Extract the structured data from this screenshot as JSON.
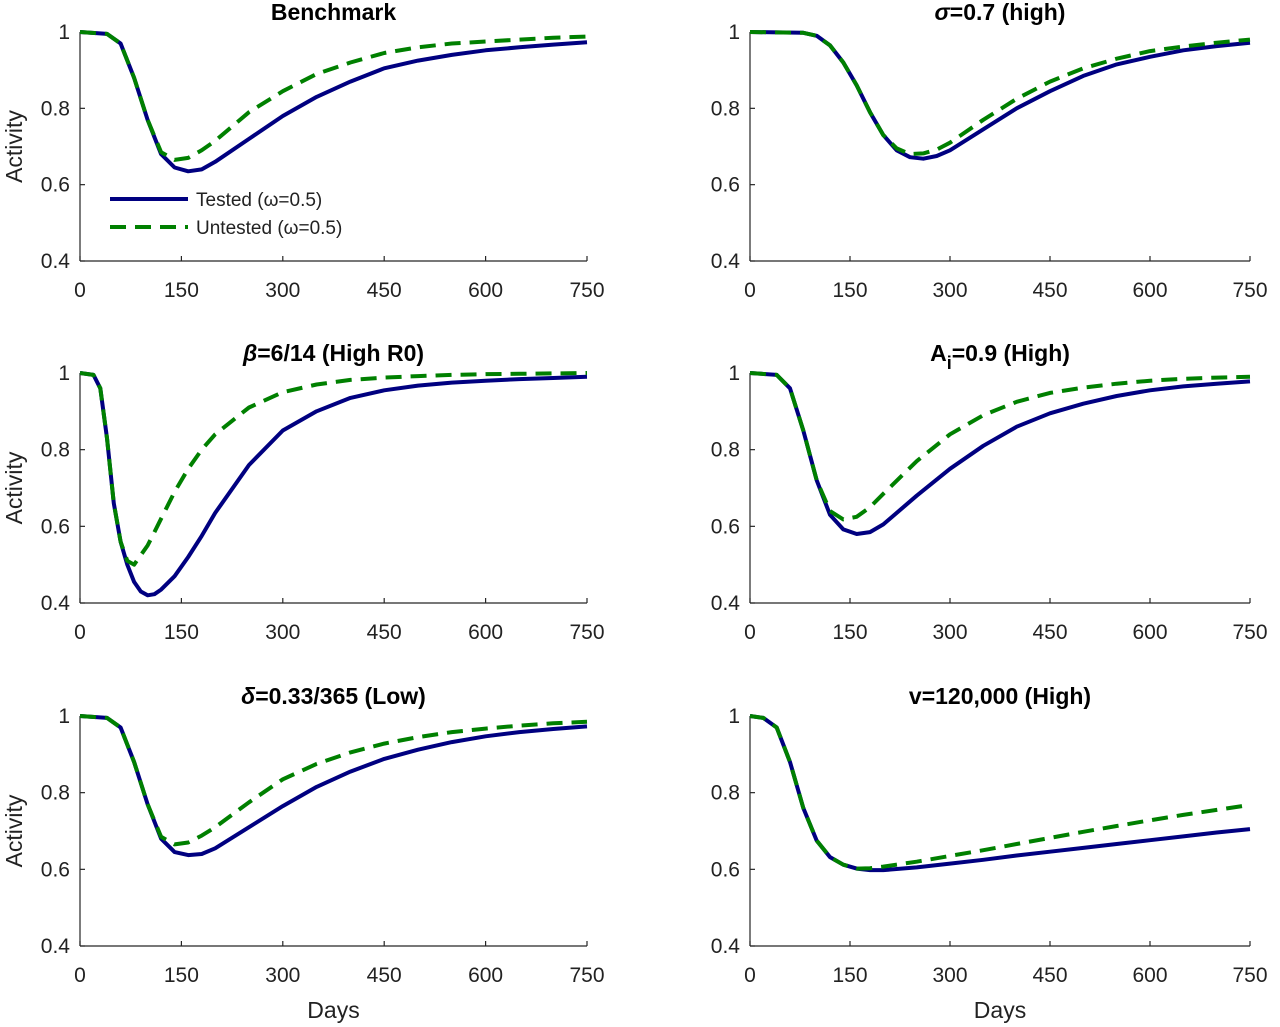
{
  "colors": {
    "tested": "#000080",
    "untested": "#008000",
    "axis": "#262626"
  },
  "chart_data": [
    {
      "type": "line",
      "title_parts": [
        {
          "t": "Benchmark"
        }
      ],
      "xlabel": "",
      "ylabel": "Activity",
      "xlim": [
        0,
        750
      ],
      "ylim": [
        0.4,
        1.0
      ],
      "xticks": [
        0,
        150,
        300,
        450,
        600,
        750
      ],
      "yticks": [
        0.4,
        0.6,
        0.8,
        1
      ],
      "ytick_labels": [
        "0.4",
        "0.6",
        "0.8",
        "1"
      ],
      "legend": {
        "position": "bottom-left",
        "entries": [
          "Tested (ω=0.5)",
          "Untested (ω=0.5)"
        ]
      },
      "series": [
        {
          "key": "tested",
          "x": [
            0,
            40,
            60,
            80,
            100,
            120,
            140,
            160,
            180,
            200,
            250,
            300,
            350,
            400,
            450,
            500,
            550,
            600,
            650,
            700,
            750
          ],
          "y": [
            1.0,
            0.995,
            0.97,
            0.88,
            0.77,
            0.68,
            0.645,
            0.635,
            0.64,
            0.66,
            0.72,
            0.78,
            0.83,
            0.87,
            0.905,
            0.925,
            0.94,
            0.952,
            0.96,
            0.967,
            0.973
          ]
        },
        {
          "key": "untested",
          "x": [
            0,
            40,
            60,
            80,
            100,
            120,
            140,
            160,
            180,
            200,
            250,
            300,
            350,
            400,
            450,
            500,
            550,
            600,
            650,
            700,
            750
          ],
          "y": [
            1.0,
            0.995,
            0.97,
            0.88,
            0.77,
            0.685,
            0.665,
            0.67,
            0.69,
            0.715,
            0.79,
            0.845,
            0.89,
            0.92,
            0.945,
            0.96,
            0.97,
            0.975,
            0.98,
            0.985,
            0.988
          ]
        }
      ]
    },
    {
      "type": "line",
      "title_parts": [
        {
          "t": "σ",
          "style": "italic"
        },
        {
          "t": "=0.7 (high)"
        }
      ],
      "xlabel": "",
      "ylabel": "",
      "xlim": [
        0,
        750
      ],
      "ylim": [
        0.4,
        1.0
      ],
      "xticks": [
        0,
        150,
        300,
        450,
        600,
        750
      ],
      "yticks": [
        0.4,
        0.6,
        0.8,
        1
      ],
      "ytick_labels": [
        "0.4",
        "0.6",
        "0.8",
        "1"
      ],
      "series": [
        {
          "key": "tested",
          "x": [
            0,
            80,
            100,
            120,
            140,
            160,
            180,
            200,
            220,
            240,
            260,
            280,
            300,
            350,
            400,
            450,
            500,
            550,
            600,
            650,
            700,
            750
          ],
          "y": [
            1.0,
            0.998,
            0.99,
            0.965,
            0.92,
            0.86,
            0.79,
            0.73,
            0.69,
            0.672,
            0.668,
            0.675,
            0.69,
            0.745,
            0.8,
            0.845,
            0.885,
            0.915,
            0.935,
            0.952,
            0.963,
            0.972
          ]
        },
        {
          "key": "untested",
          "x": [
            0,
            80,
            100,
            120,
            140,
            160,
            180,
            200,
            220,
            240,
            260,
            280,
            300,
            350,
            400,
            450,
            500,
            550,
            600,
            650,
            700,
            750
          ],
          "y": [
            1.0,
            0.998,
            0.99,
            0.965,
            0.92,
            0.86,
            0.79,
            0.73,
            0.695,
            0.68,
            0.682,
            0.692,
            0.71,
            0.77,
            0.825,
            0.87,
            0.905,
            0.93,
            0.95,
            0.962,
            0.972,
            0.98
          ]
        }
      ]
    },
    {
      "type": "line",
      "title_parts": [
        {
          "t": "β",
          "style": "italic"
        },
        {
          "t": "=6/14 (High R0)"
        }
      ],
      "xlabel": "",
      "ylabel": "Activity",
      "xlim": [
        0,
        750
      ],
      "ylim": [
        0.4,
        1.0
      ],
      "xticks": [
        0,
        150,
        300,
        450,
        600,
        750
      ],
      "yticks": [
        0.4,
        0.6,
        0.8,
        1
      ],
      "ytick_labels": [
        "0.4",
        "0.6",
        "0.8",
        "1"
      ],
      "series": [
        {
          "key": "tested",
          "x": [
            0,
            20,
            30,
            40,
            50,
            60,
            70,
            80,
            90,
            100,
            110,
            120,
            140,
            160,
            180,
            200,
            250,
            300,
            350,
            400,
            450,
            500,
            550,
            600,
            650,
            700,
            750
          ],
          "y": [
            1.0,
            0.995,
            0.96,
            0.83,
            0.66,
            0.56,
            0.5,
            0.455,
            0.43,
            0.42,
            0.423,
            0.435,
            0.47,
            0.52,
            0.575,
            0.635,
            0.76,
            0.85,
            0.9,
            0.935,
            0.955,
            0.967,
            0.975,
            0.98,
            0.984,
            0.987,
            0.99
          ]
        },
        {
          "key": "untested",
          "x": [
            0,
            20,
            30,
            40,
            50,
            60,
            70,
            80,
            90,
            100,
            110,
            120,
            140,
            160,
            180,
            200,
            250,
            300,
            350,
            400,
            450,
            500,
            550,
            600,
            650,
            700,
            750
          ],
          "y": [
            1.0,
            0.995,
            0.96,
            0.83,
            0.66,
            0.56,
            0.51,
            0.5,
            0.525,
            0.55,
            0.585,
            0.62,
            0.69,
            0.75,
            0.8,
            0.84,
            0.91,
            0.95,
            0.97,
            0.982,
            0.988,
            0.992,
            0.995,
            0.997,
            0.998,
            0.999,
            1.0
          ]
        }
      ]
    },
    {
      "type": "line",
      "title_parts": [
        {
          "t": "A"
        },
        {
          "t": "i",
          "sub": true
        },
        {
          "t": "=0.9 (High)"
        }
      ],
      "xlabel": "",
      "ylabel": "",
      "xlim": [
        0,
        750
      ],
      "ylim": [
        0.4,
        1.0
      ],
      "xticks": [
        0,
        150,
        300,
        450,
        600,
        750
      ],
      "yticks": [
        0.4,
        0.6,
        0.8,
        1
      ],
      "ytick_labels": [
        "0.4",
        "0.6",
        "0.8",
        "1"
      ],
      "series": [
        {
          "key": "tested",
          "x": [
            0,
            40,
            60,
            80,
            100,
            120,
            140,
            160,
            180,
            200,
            250,
            300,
            350,
            400,
            450,
            500,
            550,
            600,
            650,
            700,
            750
          ],
          "y": [
            1.0,
            0.995,
            0.96,
            0.85,
            0.72,
            0.63,
            0.592,
            0.58,
            0.585,
            0.605,
            0.68,
            0.75,
            0.81,
            0.86,
            0.895,
            0.92,
            0.94,
            0.955,
            0.965,
            0.972,
            0.978
          ]
        },
        {
          "key": "untested",
          "x": [
            0,
            40,
            60,
            80,
            100,
            120,
            140,
            160,
            180,
            200,
            250,
            300,
            350,
            400,
            450,
            500,
            550,
            600,
            650,
            700,
            750
          ],
          "y": [
            1.0,
            0.995,
            0.96,
            0.85,
            0.72,
            0.64,
            0.618,
            0.625,
            0.65,
            0.685,
            0.77,
            0.84,
            0.89,
            0.925,
            0.948,
            0.962,
            0.972,
            0.98,
            0.985,
            0.988,
            0.99
          ]
        }
      ]
    },
    {
      "type": "line",
      "title_parts": [
        {
          "t": "δ",
          "style": "italic"
        },
        {
          "t": "=0.33/365 (Low)"
        }
      ],
      "xlabel": "Days",
      "ylabel": "Activity",
      "xlim": [
        0,
        750
      ],
      "ylim": [
        0.4,
        1.0
      ],
      "xticks": [
        0,
        150,
        300,
        450,
        600,
        750
      ],
      "yticks": [
        0.4,
        0.6,
        0.8,
        1
      ],
      "ytick_labels": [
        "0.4",
        "0.6",
        "0.8",
        "1"
      ],
      "series": [
        {
          "key": "tested",
          "x": [
            0,
            40,
            60,
            80,
            100,
            120,
            140,
            160,
            180,
            200,
            250,
            300,
            350,
            400,
            450,
            500,
            550,
            600,
            650,
            700,
            750
          ],
          "y": [
            1.0,
            0.995,
            0.97,
            0.88,
            0.77,
            0.68,
            0.645,
            0.637,
            0.64,
            0.655,
            0.71,
            0.765,
            0.815,
            0.855,
            0.888,
            0.912,
            0.932,
            0.947,
            0.958,
            0.966,
            0.973
          ]
        },
        {
          "key": "untested",
          "x": [
            0,
            40,
            60,
            80,
            100,
            120,
            140,
            160,
            180,
            200,
            250,
            300,
            350,
            400,
            450,
            500,
            550,
            600,
            650,
            700,
            750
          ],
          "y": [
            1.0,
            0.995,
            0.97,
            0.88,
            0.77,
            0.685,
            0.665,
            0.67,
            0.688,
            0.71,
            0.775,
            0.835,
            0.875,
            0.905,
            0.928,
            0.945,
            0.958,
            0.967,
            0.975,
            0.981,
            0.985
          ]
        }
      ]
    },
    {
      "type": "line",
      "title_parts": [
        {
          "t": "v=120,000 (High)"
        }
      ],
      "xlabel": "Days",
      "ylabel": "",
      "xlim": [
        0,
        750
      ],
      "ylim": [
        0.4,
        1.0
      ],
      "xticks": [
        0,
        150,
        300,
        450,
        600,
        750
      ],
      "yticks": [
        0.4,
        0.6,
        0.8,
        1
      ],
      "ytick_labels": [
        "0.4",
        "0.6",
        "0.8",
        "1"
      ],
      "series": [
        {
          "key": "tested",
          "x": [
            0,
            20,
            40,
            60,
            80,
            100,
            120,
            140,
            160,
            180,
            200,
            250,
            300,
            350,
            400,
            450,
            500,
            550,
            600,
            650,
            700,
            750
          ],
          "y": [
            1.0,
            0.995,
            0.97,
            0.88,
            0.76,
            0.675,
            0.632,
            0.612,
            0.602,
            0.598,
            0.598,
            0.605,
            0.615,
            0.625,
            0.636,
            0.646,
            0.656,
            0.666,
            0.676,
            0.686,
            0.696,
            0.705
          ]
        },
        {
          "key": "untested",
          "x": [
            0,
            20,
            40,
            60,
            80,
            100,
            120,
            140,
            160,
            180,
            200,
            250,
            300,
            350,
            400,
            450,
            500,
            550,
            600,
            650,
            700,
            750
          ],
          "y": [
            1.0,
            0.995,
            0.97,
            0.88,
            0.76,
            0.675,
            0.632,
            0.612,
            0.602,
            0.603,
            0.607,
            0.62,
            0.635,
            0.65,
            0.666,
            0.682,
            0.698,
            0.713,
            0.728,
            0.742,
            0.755,
            0.768
          ]
        }
      ]
    }
  ]
}
